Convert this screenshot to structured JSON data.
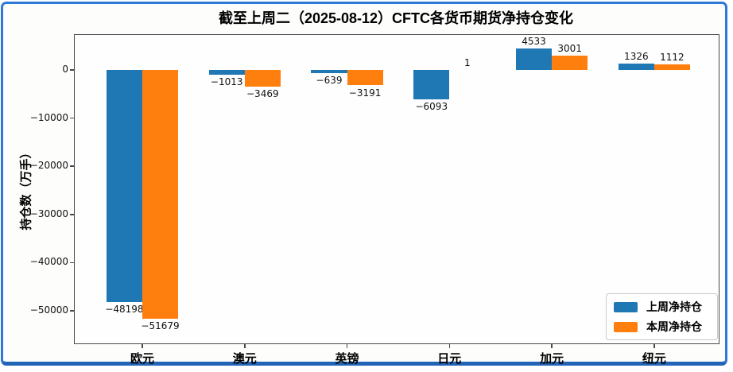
{
  "colors": {
    "series_last_week": "#1f77b4",
    "series_this_week": "#ff7f0e",
    "frame_border": "#2e78d8",
    "frame_border_bottom": "#2264b6",
    "plot_spine": "#4a4a4a",
    "legend_border": "#c9c9c9",
    "text": "#000000"
  },
  "chart_data": {
    "type": "bar",
    "title": "截至上周二（2025-08-12）CFTC各货币期货净持仓变化",
    "xlabel": "",
    "ylabel": "持仓数（万手）",
    "categories": [
      "欧元",
      "澳元",
      "英镑",
      "日元",
      "加元",
      "纽元"
    ],
    "series": [
      {
        "name": "上周净持仓",
        "color": "#1f77b4",
        "values": [
          -48198,
          -1013,
          -639,
          -6093,
          4533,
          1326
        ]
      },
      {
        "name": "本周净持仓",
        "color": "#ff7f0e",
        "values": [
          -51679,
          -3469,
          -3191,
          1,
          3001,
          1112
        ]
      }
    ],
    "yticks": [
      0,
      -10000,
      -20000,
      -30000,
      -40000,
      -50000
    ],
    "ylim": [
      -56800,
      7300
    ],
    "xlim": [
      -0.66,
      5.63
    ],
    "bar_width_units": 0.35,
    "grid": false,
    "bar_value_labels": true,
    "legend_position": "lower right"
  }
}
